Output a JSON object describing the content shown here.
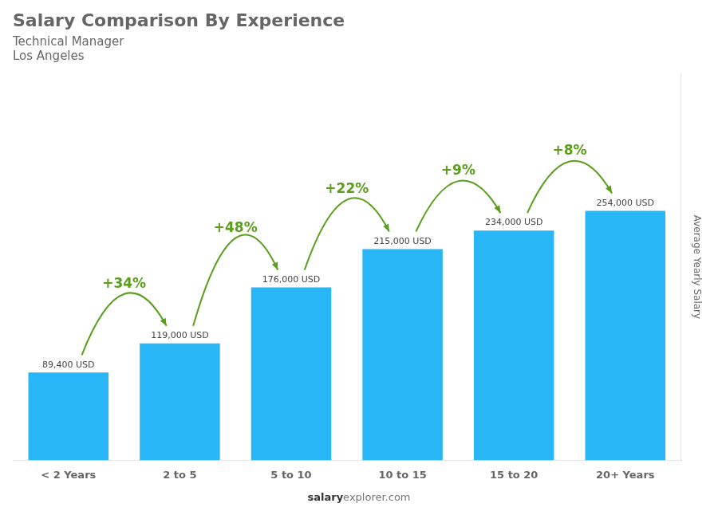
{
  "chart_data": {
    "type": "bar",
    "title": "Salary Comparison By Experience",
    "subtitle": [
      "Technical Manager",
      "Los Angeles"
    ],
    "ylabel": "Average Yearly Salary",
    "footer": [
      "salary",
      "explorer.com"
    ],
    "categories": [
      "< 2 Years",
      "2 to 5",
      "5 to 10",
      "10 to 15",
      "15 to 20",
      "20+ Years"
    ],
    "values": [
      89400,
      119000,
      176000,
      215000,
      234000,
      254000
    ],
    "value_labels": [
      "89,400 USD",
      "119,000 USD",
      "176,000 USD",
      "215,000 USD",
      "234,000 USD",
      "254,000 USD"
    ],
    "data_labels": true,
    "annotations": [
      "+34%",
      "+48%",
      "+22%",
      "+9%",
      "+8%"
    ],
    "color": "#29b6f6",
    "ylim": [
      0,
      393700
    ],
    "tick_labels": "x",
    "grid": false
  }
}
